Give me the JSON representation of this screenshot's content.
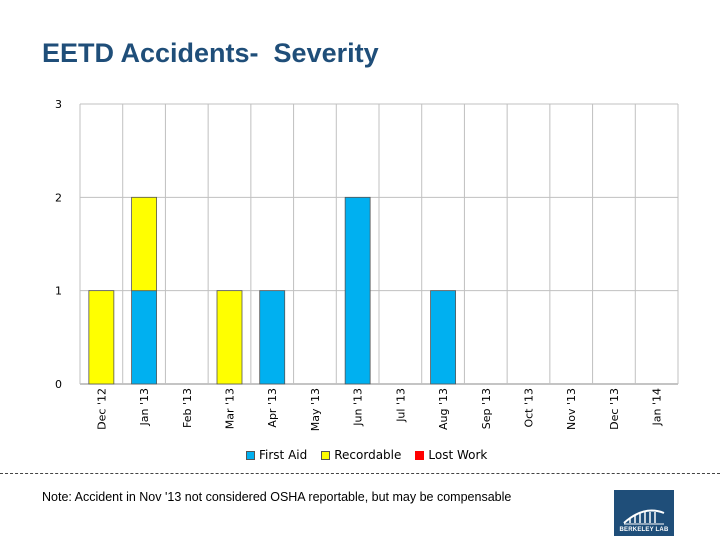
{
  "title": "EETD Accidents-  Severity",
  "note": "Note: Accident in Nov '13 not considered OSHA reportable, but may be compensable",
  "logo_text": "BERKELEY LAB",
  "colors": {
    "first_aid": "#00b0f0",
    "recordable": "#ffff00",
    "lost_work": "#ff0000",
    "title": "#1f4e79",
    "grid": "#c0c0c0"
  },
  "chart_data": {
    "type": "bar",
    "stacked": true,
    "title": "EETD Accidents-  Severity",
    "xlabel": "",
    "ylabel": "",
    "ylim": [
      0,
      3
    ],
    "yticks": [
      0,
      1,
      2,
      3
    ],
    "grid": true,
    "legend_position": "bottom",
    "categories": [
      "Dec '12",
      "Jan '13",
      "Feb '13",
      "Mar '13",
      "Apr '13",
      "May '13",
      "Jun '13",
      "Jul '13",
      "Aug '13",
      "Sep '13",
      "Oct '13",
      "Nov '13",
      "Dec '13",
      "Jan '14"
    ],
    "series": [
      {
        "name": "First Aid",
        "color": "#00b0f0",
        "values": [
          0,
          1,
          0,
          0,
          1,
          0,
          2,
          0,
          1,
          0,
          0,
          0,
          0,
          0
        ]
      },
      {
        "name": "Recordable",
        "color": "#ffff00",
        "values": [
          1,
          1,
          0,
          1,
          0,
          0,
          0,
          0,
          0,
          0,
          0,
          0,
          0,
          0
        ]
      },
      {
        "name": "Lost Work",
        "color": "#ff0000",
        "values": [
          0,
          0,
          0,
          0,
          0,
          0,
          0,
          0,
          0,
          0,
          0,
          0,
          0,
          0
        ]
      }
    ]
  }
}
